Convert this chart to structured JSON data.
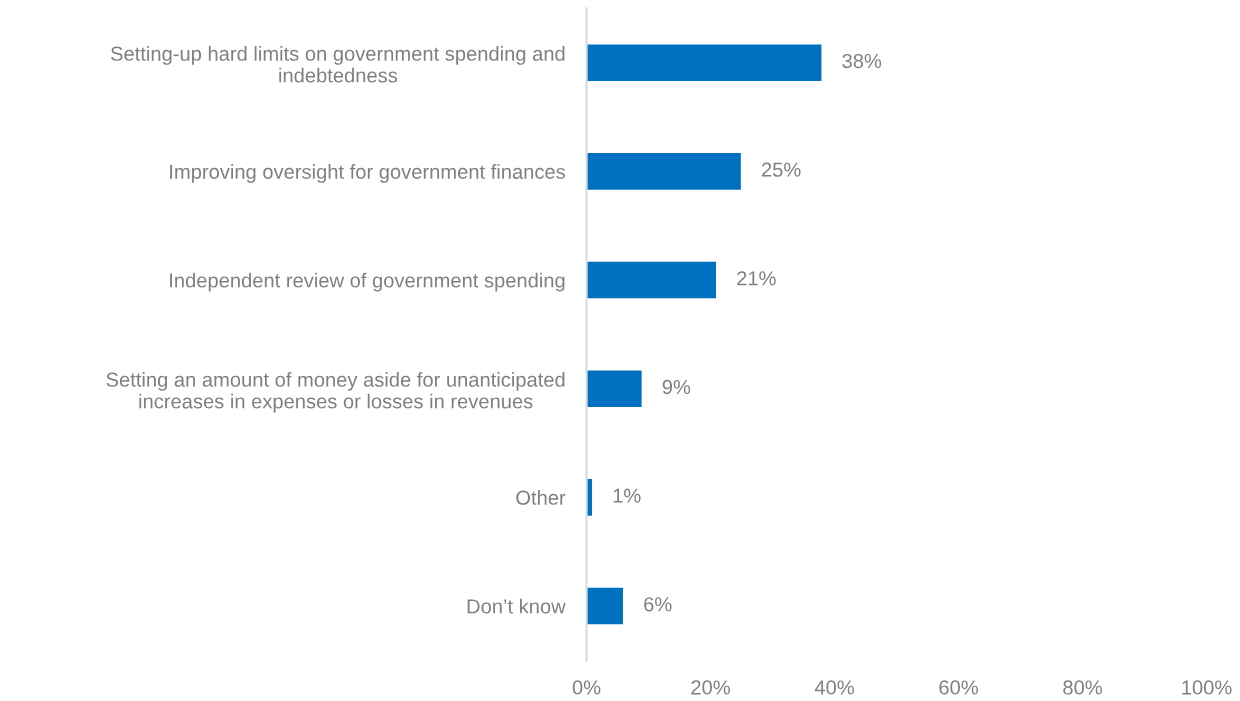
{
  "chart_data": {
    "type": "bar",
    "orientation": "horizontal",
    "categories": [
      "Setting-up hard limits on government spending and\nindebtedness",
      "Improving oversight for government finances",
      "Independent review of government spending",
      "Setting an amount of money aside for unanticipated\nincreases in expenses or losses in revenues",
      "Other",
      "Don’t know"
    ],
    "values": [
      38,
      25,
      21,
      9,
      1,
      6
    ],
    "value_labels": [
      "38%",
      "25%",
      "21%",
      "9%",
      "1%",
      "6%"
    ],
    "color": "#0070c0",
    "xlim": [
      0,
      100
    ],
    "xticks": [
      {
        "value": 0,
        "label": "0%"
      },
      {
        "value": 20,
        "label": "20%"
      },
      {
        "value": 40,
        "label": "40%"
      },
      {
        "value": 60,
        "label": "60%"
      },
      {
        "value": 80,
        "label": "80%"
      },
      {
        "value": 100,
        "label": "100%"
      }
    ],
    "grid": false,
    "legend": false
  }
}
